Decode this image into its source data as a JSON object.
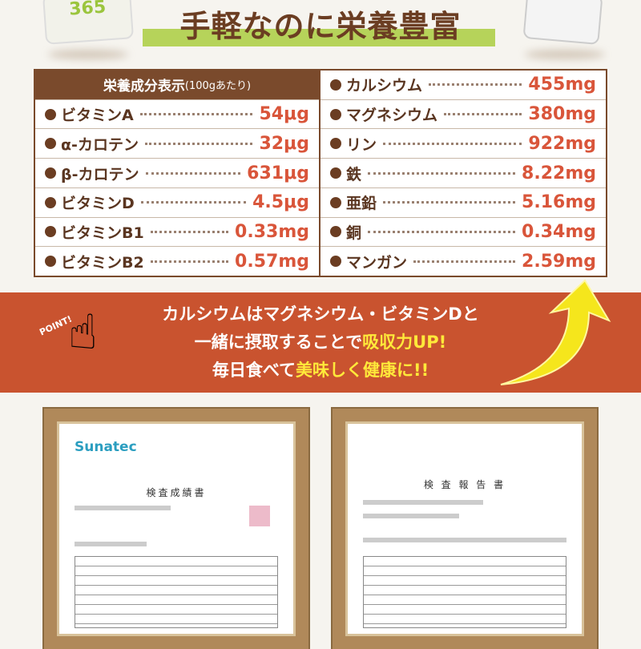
{
  "title": "手軽なのに栄養豊富",
  "product_label": "365",
  "table": {
    "header": "栄養成分表示",
    "header_sub": "(100gあたり)",
    "left": [
      {
        "name": "ビタミンA",
        "value": "54μg"
      },
      {
        "name": "α-カロテン",
        "value": "32μg"
      },
      {
        "name": "β-カロテン",
        "value": "631μg"
      },
      {
        "name": "ビタミンD",
        "value": "4.5μg"
      },
      {
        "name": "ビタミンB1",
        "value": "0.33mg"
      },
      {
        "name": "ビタミンB2",
        "value": "0.57mg"
      }
    ],
    "right": [
      {
        "name": "カルシウム",
        "value": "455mg"
      },
      {
        "name": "マグネシウム",
        "value": "380mg"
      },
      {
        "name": "リン",
        "value": "922mg"
      },
      {
        "name": "鉄",
        "value": "8.22mg"
      },
      {
        "name": "亜鉛",
        "value": "5.16mg"
      },
      {
        "name": "銅",
        "value": "0.34mg"
      },
      {
        "name": "マンガン",
        "value": "2.59mg"
      }
    ]
  },
  "banner": {
    "point": "POINT!",
    "line1": "カルシウムはマグネシウム・ビタミンDと",
    "line2_a": "一緒に摂取することで",
    "line2_b": "吸収力UP!",
    "line3_a": "毎日食べて",
    "line3_b": "美味しく健康に!!"
  },
  "docs": {
    "logo": "Sunatec",
    "doc1_title": "検査成績書",
    "doc2_title": "検 査 報 告 書"
  },
  "colors": {
    "brown": "#7a4a2c",
    "value_red": "#d9553a",
    "banner": "#c9532f",
    "highlight_yellow": "#ffe93a",
    "title_underline": "#b6d35a"
  }
}
